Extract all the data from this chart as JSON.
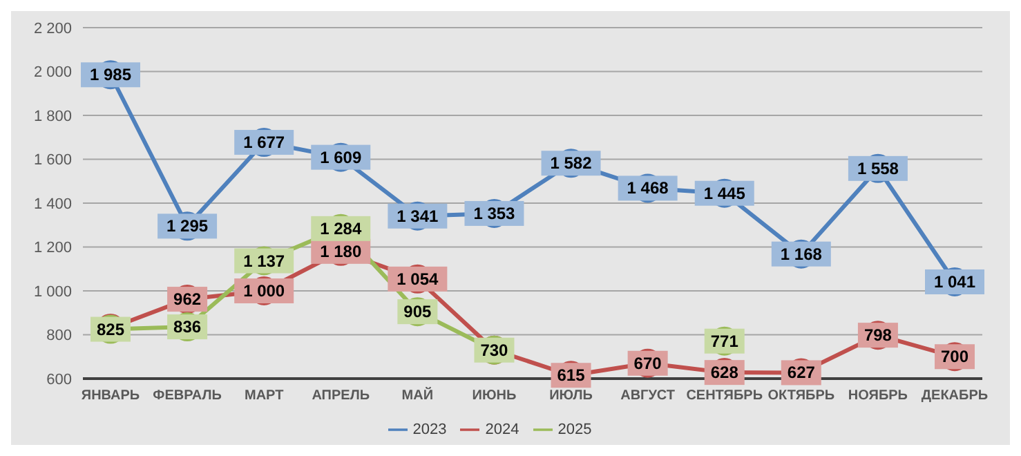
{
  "chart_data": {
    "type": "line",
    "categories": [
      "ЯНВАРЬ",
      "ФЕВРАЛЬ",
      "МАРТ",
      "АПРЕЛЬ",
      "МАЙ",
      "ИЮНЬ",
      "ИЮЛЬ",
      "АВГУСТ",
      "СЕНТЯБРЬ",
      "ОКТЯБРЬ",
      "НОЯБРЬ",
      "ДЕКАБРЬ"
    ],
    "series": [
      {
        "name": "2023",
        "color": "#4f81bd",
        "values": [
          1985,
          1295,
          1677,
          1609,
          1341,
          1353,
          1582,
          1468,
          1445,
          1168,
          1558,
          1041
        ],
        "value_labels": [
          "1 985",
          "1 295",
          "1 677",
          "1 609",
          "1 341",
          "1 353",
          "1 582",
          "1 468",
          "1 445",
          "1 168",
          "1 558",
          "1 041"
        ]
      },
      {
        "name": "2024",
        "color": "#c0504d",
        "values": [
          830,
          962,
          1000,
          1180,
          1054,
          730,
          615,
          670,
          628,
          627,
          798,
          700
        ],
        "value_labels": [
          null,
          "962",
          "1 000",
          "1 180",
          "1 054",
          null,
          "615",
          "670",
          "628",
          "627",
          "798",
          "700"
        ]
      },
      {
        "name": "2025",
        "color": "#9bbb59",
        "values": [
          825,
          836,
          1137,
          1284,
          905,
          730,
          null,
          null,
          771,
          null,
          null,
          null
        ],
        "value_labels": [
          "825",
          "836",
          "1 137",
          "1 284",
          "905",
          "730",
          null,
          null,
          "771",
          null,
          null,
          null
        ]
      }
    ],
    "ylim": [
      600,
      2200
    ],
    "yticks": [
      {
        "value": 600,
        "label": "600"
      },
      {
        "value": 800,
        "label": "800"
      },
      {
        "value": 1000,
        "label": "1 000"
      },
      {
        "value": 1200,
        "label": "1 200"
      },
      {
        "value": 1400,
        "label": "1 400"
      },
      {
        "value": 1600,
        "label": "1 600"
      },
      {
        "value": 1800,
        "label": "1 800"
      },
      {
        "value": 2000,
        "label": "2 000"
      },
      {
        "value": 2200,
        "label": "2 200"
      }
    ],
    "grid": "y",
    "legend": "bottom",
    "marker": "circle",
    "line_style": "solid"
  }
}
